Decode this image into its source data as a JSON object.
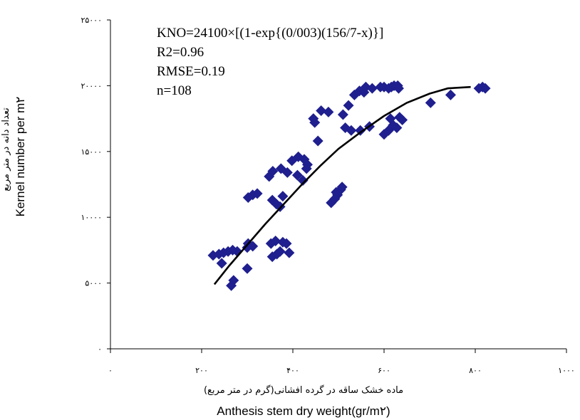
{
  "chart_data": {
    "type": "scatter",
    "title": "",
    "xlabel_fa": "ماده خشک ساقه در گرده افشانی(گرم در متر مربع)",
    "xlabel_en": "Anthesis stem dry weight(gr/m۲)",
    "ylabel_fa": "تعداد دانه در متر مربع",
    "ylabel_en": "Kernel number per m۲",
    "xlim": [
      0,
      1000
    ],
    "ylim": [
      0,
      25000
    ],
    "x_ticks": [
      {
        "value": 0,
        "label": "۰"
      },
      {
        "value": 200,
        "label": "۲۰۰"
      },
      {
        "value": 400,
        "label": "۴۰۰"
      },
      {
        "value": 600,
        "label": "۶۰۰"
      },
      {
        "value": 800,
        "label": "۸۰۰"
      },
      {
        "value": 1000,
        "label": "۱۰۰۰"
      }
    ],
    "y_ticks": [
      {
        "value": 0,
        "label": "۰"
      },
      {
        "value": 5000,
        "label": "۵۰۰۰"
      },
      {
        "value": 10000,
        "label": "۱۰۰۰۰"
      },
      {
        "value": 15000,
        "label": "۱۵۰۰۰"
      },
      {
        "value": 20000,
        "label": "۲۰۰۰۰"
      },
      {
        "value": 25000,
        "label": "۲۵۰۰۰"
      }
    ],
    "grid": false,
    "marker_color": "#1f1f8f",
    "fit_line_color": "#000000",
    "equation": {
      "formula": "KNO=24100×[(1-exp{(0/003)(156/7-x)}]",
      "r2": "R2=0.96",
      "rmse": "RMSE=0.19",
      "n": "n=108"
    },
    "fit_curve": [
      [
        228,
        4900
      ],
      [
        260,
        6300
      ],
      [
        300,
        7900
      ],
      [
        340,
        9500
      ],
      [
        380,
        11000
      ],
      [
        420,
        12500
      ],
      [
        460,
        13900
      ],
      [
        500,
        15200
      ],
      [
        550,
        16500
      ],
      [
        600,
        17700
      ],
      [
        650,
        18700
      ],
      [
        700,
        19400
      ],
      [
        740,
        19800
      ],
      [
        790,
        19900
      ]
    ],
    "points": [
      [
        225,
        7100
      ],
      [
        238,
        7200
      ],
      [
        248,
        7300
      ],
      [
        258,
        7400
      ],
      [
        268,
        7500
      ],
      [
        278,
        7400
      ],
      [
        300,
        7700
      ],
      [
        302,
        8000
      ],
      [
        312,
        7800
      ],
      [
        244,
        6500
      ],
      [
        300,
        6100
      ],
      [
        270,
        5200
      ],
      [
        265,
        4800
      ],
      [
        355,
        7000
      ],
      [
        365,
        7200
      ],
      [
        372,
        7400
      ],
      [
        392,
        7300
      ],
      [
        352,
        8000
      ],
      [
        362,
        8200
      ],
      [
        378,
        8100
      ],
      [
        386,
        8000
      ],
      [
        302,
        11500
      ],
      [
        312,
        11700
      ],
      [
        322,
        11800
      ],
      [
        355,
        11300
      ],
      [
        364,
        11000
      ],
      [
        372,
        10800
      ],
      [
        378,
        11600
      ],
      [
        348,
        13100
      ],
      [
        356,
        13500
      ],
      [
        374,
        13700
      ],
      [
        388,
        13400
      ],
      [
        398,
        14300
      ],
      [
        412,
        14600
      ],
      [
        425,
        14400
      ],
      [
        432,
        14000
      ],
      [
        410,
        13200
      ],
      [
        422,
        12800
      ],
      [
        430,
        13700
      ],
      [
        455,
        15800
      ],
      [
        445,
        17500
      ],
      [
        448,
        17200
      ],
      [
        462,
        18100
      ],
      [
        478,
        18000
      ],
      [
        510,
        17800
      ],
      [
        515,
        16800
      ],
      [
        528,
        16600
      ],
      [
        548,
        16600
      ],
      [
        522,
        18500
      ],
      [
        535,
        19300
      ],
      [
        546,
        19600
      ],
      [
        556,
        19500
      ],
      [
        560,
        19900
      ],
      [
        574,
        19800
      ],
      [
        568,
        16900
      ],
      [
        592,
        19900
      ],
      [
        600,
        19900
      ],
      [
        610,
        19800
      ],
      [
        616,
        19900
      ],
      [
        622,
        20000
      ],
      [
        630,
        20000
      ],
      [
        632,
        19800
      ],
      [
        600,
        16300
      ],
      [
        610,
        16600
      ],
      [
        620,
        17000
      ],
      [
        628,
        16800
      ],
      [
        634,
        17600
      ],
      [
        640,
        17400
      ],
      [
        614,
        17500
      ],
      [
        498,
        11700
      ],
      [
        505,
        12100
      ],
      [
        508,
        12300
      ],
      [
        495,
        11900
      ],
      [
        492,
        11400
      ],
      [
        484,
        11100
      ],
      [
        702,
        18700
      ],
      [
        746,
        19300
      ],
      [
        808,
        19800
      ],
      [
        816,
        19900
      ],
      [
        822,
        19800
      ]
    ]
  }
}
